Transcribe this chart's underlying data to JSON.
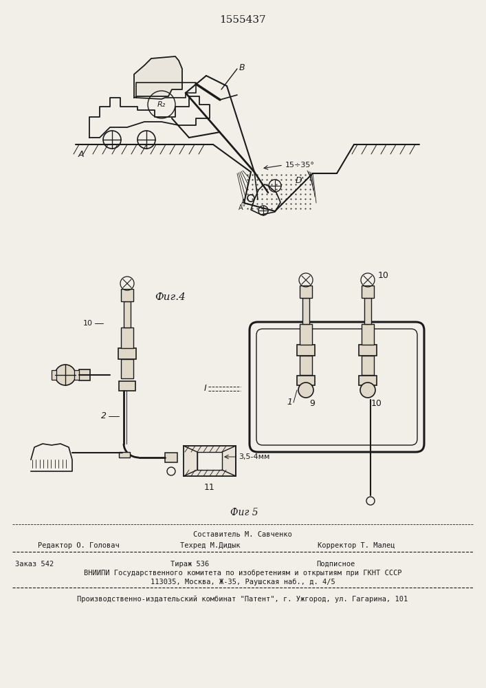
{
  "title_patent": "1555437",
  "fig4_label": "Фиг.4",
  "fig5_label": "Фиг 5",
  "bg_color": "#f2efe8",
  "line_color": "#1a1a1a",
  "text_color": "#1a1a1a",
  "footer": {
    "line1_left": "Составитель М. Савченко",
    "line2_left": "Редактор О. Головач",
    "line2_mid": "Техред М.Дидык",
    "line2_right": "Корректор Т. Малец",
    "order": "Заказ 542",
    "tirazh": "Тираж 536",
    "podpisnoe": "Подписное",
    "vnipi": "ВНИИПИ Государственного комитета по изобретениям и открытиям при ГКНТ СССР",
    "address": "113035, Москва, Ж-35, Раушская наб., д. 4/5",
    "producer": "Производственно-издательский комбинат \"Патент\", г. Ужгород, ул. Гагарина, 101"
  },
  "angle_label": "15÷35°",
  "label_B": "B",
  "label_A": "A",
  "label_D": "D'",
  "label_R": "R₂",
  "label_1": "1",
  "label_2": "2",
  "label_9": "9",
  "label_10": "10",
  "label_11": "11",
  "label_dim": "3,5-4мм"
}
